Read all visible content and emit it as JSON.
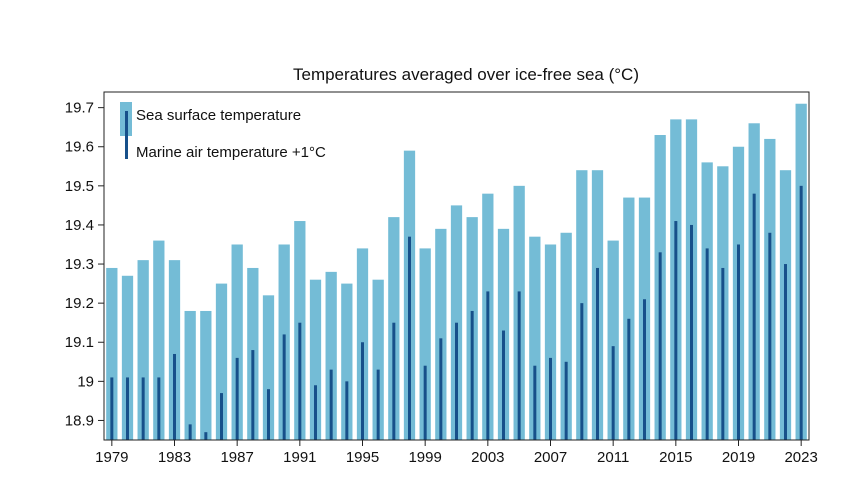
{
  "chart_data": {
    "type": "bar",
    "title": "Temperatures averaged over ice-free sea (°C)",
    "xlabel": "",
    "ylabel": "",
    "ylim": [
      18.85,
      19.74
    ],
    "yticks": [
      18.9,
      19,
      19.1,
      19.2,
      19.3,
      19.4,
      19.5,
      19.6,
      19.7
    ],
    "ytick_labels": [
      "18.9",
      "19",
      "19.1",
      "19.2",
      "19.3",
      "19.4",
      "19.5",
      "19.6",
      "19.7"
    ],
    "xtick_labels": [
      "1979",
      "1983",
      "1987",
      "1991",
      "1995",
      "1999",
      "2003",
      "2007",
      "2011",
      "2015",
      "2019",
      "2023"
    ],
    "xtick_years": [
      1979,
      1983,
      1987,
      1991,
      1995,
      1999,
      2003,
      2007,
      2011,
      2015,
      2019,
      2023
    ],
    "categories": [
      1979,
      1980,
      1981,
      1982,
      1983,
      1984,
      1985,
      1986,
      1987,
      1988,
      1989,
      1990,
      1991,
      1992,
      1993,
      1994,
      1995,
      1996,
      1997,
      1998,
      1999,
      2000,
      2001,
      2002,
      2003,
      2004,
      2005,
      2006,
      2007,
      2008,
      2009,
      2010,
      2011,
      2012,
      2013,
      2014,
      2015,
      2016,
      2017,
      2018,
      2019,
      2020,
      2021,
      2022,
      2023
    ],
    "series": [
      {
        "name": "Sea surface temperature",
        "color": "#74BCD6",
        "values": [
          19.29,
          19.27,
          19.31,
          19.36,
          19.31,
          19.18,
          19.18,
          19.25,
          19.35,
          19.29,
          19.22,
          19.35,
          19.41,
          19.26,
          19.28,
          19.25,
          19.34,
          19.26,
          19.42,
          19.59,
          19.34,
          19.39,
          19.45,
          19.42,
          19.48,
          19.39,
          19.5,
          19.37,
          19.35,
          19.38,
          19.54,
          19.54,
          19.36,
          19.47,
          19.47,
          19.63,
          19.67,
          19.67,
          19.56,
          19.55,
          19.6,
          19.66,
          19.62,
          19.54,
          19.71
        ]
      },
      {
        "name": "Marine air temperature +1°C",
        "color": "#17508A",
        "values": [
          19.01,
          19.01,
          19.01,
          19.01,
          19.07,
          18.89,
          18.87,
          18.97,
          19.06,
          19.08,
          18.98,
          19.12,
          19.15,
          18.99,
          19.03,
          19.0,
          19.1,
          19.03,
          19.15,
          19.37,
          19.04,
          19.11,
          19.15,
          19.18,
          19.23,
          19.13,
          19.23,
          19.04,
          19.06,
          19.05,
          19.2,
          19.29,
          19.09,
          19.16,
          19.21,
          19.33,
          19.41,
          19.4,
          19.34,
          19.29,
          19.35,
          19.48,
          19.38,
          19.3,
          19.5
        ]
      }
    ],
    "legend_position": "top-left",
    "grid": false
  }
}
